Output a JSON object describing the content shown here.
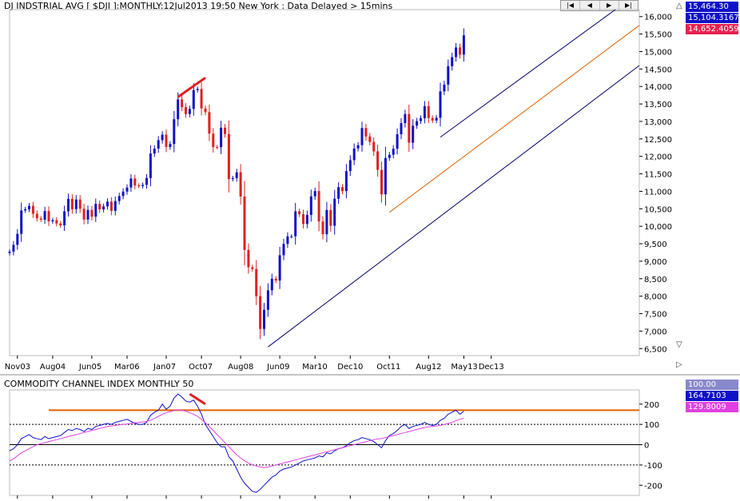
{
  "header": {
    "title": "DJ INDSTRIAL AVG [ $DJI ]:MONTHLY:12Jul2013 19:50 New York : Data Delayed > 15mins",
    "nav_buttons": [
      "|◀",
      "◀",
      "▶",
      "▶|"
    ]
  },
  "price_tags": [
    {
      "value": "15,464.30",
      "color": "#1010c8"
    },
    {
      "value": "15,104.3167",
      "color": "#1010c8"
    },
    {
      "value": "14,652.4059",
      "color": "#e8204f"
    }
  ],
  "indicator_tags": [
    {
      "value": "100.00",
      "color": "#8888cc"
    },
    {
      "value": "164.7103",
      "color": "#1010c8"
    },
    {
      "value": "129.8009",
      "color": "#e040e0"
    }
  ],
  "icons": {
    "up": "triangle-up-icon",
    "down": "triangle-down-icon",
    "right": "triangle-right-icon"
  },
  "colors": {
    "up": "#1010c8",
    "down": "#e02020",
    "cci": "#1010c8",
    "cci_avg": "#e040e0",
    "resistance": "#e06000",
    "trendline": "#000066"
  },
  "chart_data": [
    {
      "type": "candlestick",
      "title": "DJ INDSTRIAL AVG [ $DJI ]:MONTHLY:12Jul2013 19:50 New York : Data Delayed > 15mins",
      "x_tick_labels": [
        "Nov03",
        "Aug04",
        "Jun05",
        "Mar06",
        "Jan07",
        "Oct07",
        "Aug08",
        "Jun09",
        "Mar10",
        "Dec10",
        "Oct11",
        "Aug12",
        "May13",
        "Dec13"
      ],
      "y_tick_labels": [
        "6,500",
        "7,000",
        "7,500",
        "8,000",
        "8,500",
        "9,000",
        "9,500",
        "10,000",
        "10,500",
        "11,000",
        "11,500",
        "12,000",
        "12,500",
        "13,000",
        "13,500",
        "14,000",
        "14,500",
        "15,000",
        "15,500",
        "16,000"
      ],
      "ylim": [
        6300,
        16200
      ],
      "grid": false,
      "series": [
        {
          "name": "Close",
          "start": "2003-09",
          "interval": "monthly",
          "values": [
            9275,
            9469,
            9782,
            10453,
            10488,
            10584,
            10358,
            10226,
            10188,
            10435,
            10140,
            10174,
            10080,
            10027,
            10428,
            10783,
            10490,
            10766,
            10503,
            10192,
            10467,
            10275,
            10641,
            10481,
            10569,
            10705,
            10441,
            10721,
            10865,
            10993,
            11109,
            11367,
            11168,
            11150,
            11185,
            11381,
            12081,
            12222,
            12463,
            12622,
            12269,
            12354,
            13062,
            13628,
            13409,
            13212,
            13358,
            13896,
            13930,
            13372,
            13265,
            12650,
            12266,
            12263,
            12820,
            12638,
            11350,
            11378,
            11544,
            10851,
            9325,
            8829,
            8776,
            8000,
            7063,
            7609,
            8168,
            8500,
            8447,
            9171,
            9496,
            9712,
            9713,
            10428,
            10345,
            10067,
            10325,
            10857,
            11008,
            10137,
            9774,
            10466,
            10015,
            10788,
            11118,
            11006,
            11578,
            11892,
            12226,
            12320,
            12811,
            12570,
            12414,
            12143,
            11614,
            10913,
            11955,
            12046,
            12218,
            12633,
            12952,
            13212,
            12391,
            12880,
            13009,
            13090,
            13437,
            13096,
            13026,
            13104,
            13860,
            14054,
            14579,
            14840,
            15116,
            14910,
            15464
          ]
        },
        {
          "name": "Trend channel lines",
          "points": [
            [
              "2009-03",
              6547
            ],
            [
              "2013-12",
              16500
            ]
          ]
        }
      ],
      "annotations": [
        "Bearish divergence line at 2007 top",
        "Trendline support from Mar09 low",
        "Trendline support from Oct11 low",
        "Steep trendline from Nov12 low"
      ]
    },
    {
      "type": "line",
      "title": "COMMODITY CHANNEL INDEX MONTHLY 50",
      "y_tick_labels": [
        "200",
        "100",
        "0",
        "-100",
        "-200"
      ],
      "ylim": [
        -250,
        270
      ],
      "reference_lines": [
        100,
        0,
        -100,
        170
      ],
      "series": [
        {
          "name": "CCI",
          "values": [
            -30,
            -20,
            0,
            30,
            40,
            50,
            35,
            30,
            25,
            40,
            30,
            35,
            40,
            45,
            60,
            75,
            70,
            80,
            75,
            65,
            80,
            75,
            90,
            95,
            100,
            105,
            100,
            110,
            115,
            120,
            125,
            115,
            105,
            100,
            100,
            110,
            145,
            160,
            170,
            200,
            175,
            190,
            230,
            250,
            235,
            215,
            210,
            220,
            190,
            150,
            100,
            70,
            40,
            10,
            -10,
            -10,
            -60,
            -80,
            -120,
            -160,
            -190,
            -210,
            -230,
            -235,
            -220,
            -200,
            -180,
            -160,
            -150,
            -130,
            -120,
            -115,
            -110,
            -100,
            -90,
            -80,
            -75,
            -70,
            -65,
            -55,
            -60,
            -40,
            -45,
            -30,
            -20,
            -15,
            -5,
            10,
            20,
            25,
            35,
            30,
            25,
            15,
            0,
            -15,
            20,
            45,
            55,
            70,
            90,
            100,
            80,
            90,
            95,
            100,
            110,
            100,
            95,
            100,
            120,
            130,
            150,
            160,
            170,
            150,
            165
          ]
        },
        {
          "name": "CCI average",
          "values": [
            -80,
            -70,
            -55,
            -40,
            -30,
            -20,
            -10,
            0,
            5,
            10,
            15,
            20,
            25,
            30,
            35,
            40,
            45,
            50,
            55,
            60,
            65,
            70,
            75,
            80,
            85,
            90,
            92,
            95,
            98,
            100,
            102,
            105,
            108,
            110,
            112,
            115,
            120,
            130,
            140,
            150,
            158,
            163,
            168,
            172,
            170,
            165,
            158,
            150,
            140,
            125,
            108,
            90,
            70,
            50,
            30,
            10,
            -10,
            -30,
            -50,
            -65,
            -80,
            -90,
            -100,
            -105,
            -110,
            -112,
            -110,
            -105,
            -100,
            -95,
            -90,
            -85,
            -80,
            -75,
            -70,
            -65,
            -60,
            -55,
            -50,
            -45,
            -40,
            -35,
            -30,
            -25,
            -20,
            -15,
            -10,
            -5,
            0,
            5,
            10,
            15,
            20,
            25,
            28,
            30,
            35,
            40,
            45,
            50,
            55,
            60,
            65,
            70,
            75,
            80,
            85,
            88,
            90,
            92,
            95,
            100,
            105,
            110,
            118,
            125,
            130
          ]
        }
      ],
      "annotations": [
        "Divergence line at 2007 top"
      ]
    }
  ]
}
